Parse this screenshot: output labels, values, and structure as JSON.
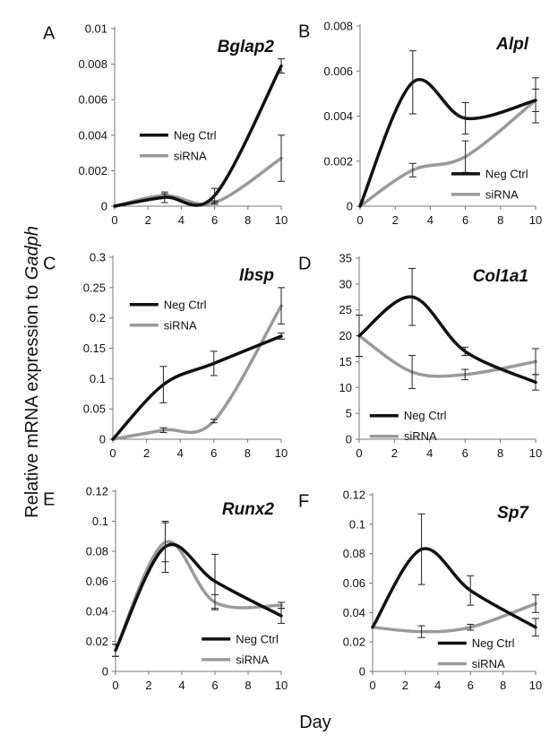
{
  "y_axis_title": {
    "main": "Relative mRNA expression to ",
    "gene": "Gadph"
  },
  "x_axis_title": "Day",
  "colors": {
    "neg_ctrl": "#111111",
    "sirna": "#9a9a9a"
  },
  "chart_data": [
    {
      "type": "line",
      "letter": "A",
      "title": "Bglap2",
      "x_ticks": [
        "0",
        "2",
        "4",
        "6",
        "8",
        "10"
      ],
      "xlim": [
        0,
        10
      ],
      "y_ticks": [
        "0",
        "0.002",
        "0.004",
        "0.006",
        "0.008",
        "0.01"
      ],
      "ylim": [
        0,
        0.01
      ],
      "x": [
        0,
        3,
        6,
        10
      ],
      "legend_position": "middle-left",
      "series": [
        {
          "name": "Neg Ctrl",
          "values": [
            0,
            0.0005,
            0.0006,
            0.0079
          ],
          "errors": [
            0,
            0.0003,
            0.0004,
            0.0004
          ]
        },
        {
          "name": "siRNA",
          "values": [
            0,
            0.0006,
            0.0002,
            0.0027
          ],
          "errors": [
            0,
            0.0001,
            0.0001,
            0.0013
          ]
        }
      ]
    },
    {
      "type": "line",
      "letter": "B",
      "title": "Alpl",
      "x_ticks": [
        "0",
        "2",
        "4",
        "6",
        "8",
        "10"
      ],
      "xlim": [
        0,
        10
      ],
      "y_ticks": [
        "0",
        "0.002",
        "0.004",
        "0.006",
        "0.008"
      ],
      "ylim": [
        0,
        0.008
      ],
      "x": [
        0,
        3,
        6,
        10
      ],
      "legend_position": "bottom-right",
      "series": [
        {
          "name": "Neg Ctrl",
          "values": [
            0,
            0.0055,
            0.0039,
            0.0047
          ],
          "errors": [
            0,
            0.0014,
            0.0007,
            0.001
          ]
        },
        {
          "name": "siRNA",
          "values": [
            0,
            0.0016,
            0.0022,
            0.0047
          ],
          "errors": [
            0,
            0.0003,
            0.0007,
            0.0005
          ]
        }
      ]
    },
    {
      "type": "line",
      "letter": "C",
      "title": "Ibsp",
      "x_ticks": [
        "0",
        "2",
        "4",
        "6",
        "8",
        "10"
      ],
      "xlim": [
        0,
        10
      ],
      "y_ticks": [
        "0",
        "0.05",
        "0.1",
        "0.15",
        "0.2",
        "0.25",
        "0.3"
      ],
      "ylim": [
        0,
        0.3
      ],
      "x": [
        0,
        3,
        6,
        10
      ],
      "legend_position": "top-left",
      "series": [
        {
          "name": "Neg Ctrl",
          "values": [
            0,
            0.09,
            0.125,
            0.17
          ],
          "errors": [
            0,
            0.03,
            0.02,
            0.005
          ]
        },
        {
          "name": "siRNA",
          "values": [
            0,
            0.015,
            0.03,
            0.22
          ],
          "errors": [
            0,
            0.004,
            0.003,
            0.03
          ]
        }
      ]
    },
    {
      "type": "line",
      "letter": "D",
      "title": "Col1a1",
      "x_ticks": [
        "0",
        "2",
        "4",
        "6",
        "8",
        "10"
      ],
      "xlim": [
        0,
        10
      ],
      "y_ticks": [
        "0",
        "5",
        "10",
        "15",
        "20",
        "25",
        "30",
        "35"
      ],
      "ylim": [
        0,
        35
      ],
      "x": [
        0,
        3,
        6,
        10
      ],
      "legend_position": "bottom-left",
      "series": [
        {
          "name": "Neg Ctrl",
          "values": [
            20,
            27.5,
            17,
            11
          ],
          "errors": [
            4,
            5.5,
            0.8,
            1.5
          ]
        },
        {
          "name": "siRNA",
          "values": [
            20,
            13,
            12.5,
            15
          ],
          "errors": [
            4,
            3.2,
            1,
            2.5
          ]
        }
      ]
    },
    {
      "type": "line",
      "letter": "E",
      "title": "Runx2",
      "x_ticks": [
        "0",
        "2",
        "4",
        "6",
        "8",
        "10"
      ],
      "xlim": [
        0,
        10
      ],
      "y_ticks": [
        "0",
        "0.02",
        "0.04",
        "0.06",
        "0.08",
        "0.1",
        "0.12"
      ],
      "ylim": [
        0,
        0.12
      ],
      "x": [
        0,
        3,
        6,
        10
      ],
      "legend_position": "bottom-right",
      "series": [
        {
          "name": "Neg Ctrl",
          "values": [
            0.014,
            0.083,
            0.06,
            0.037
          ],
          "errors": [
            0.004,
            0.017,
            0.018,
            0.005
          ]
        },
        {
          "name": "siRNA",
          "values": [
            0.014,
            0.086,
            0.046,
            0.044
          ],
          "errors": [
            0.004,
            0.013,
            0.005,
            0.002
          ]
        }
      ]
    },
    {
      "type": "line",
      "letter": "F",
      "title": "Sp7",
      "x_ticks": [
        "0",
        "2",
        "4",
        "6",
        "8",
        "10"
      ],
      "xlim": [
        0,
        10
      ],
      "y_ticks": [
        "0",
        "0.02",
        "0.04",
        "0.06",
        "0.08",
        "0.1",
        "0.12"
      ],
      "ylim": [
        0,
        0.12
      ],
      "x": [
        0,
        3,
        6,
        10
      ],
      "legend_position": "bottom-center",
      "series": [
        {
          "name": "Neg Ctrl",
          "values": [
            0.03,
            0.083,
            0.055,
            0.03
          ],
          "errors": [
            0,
            0.024,
            0.01,
            0.006
          ]
        },
        {
          "name": "siRNA",
          "values": [
            0.03,
            0.027,
            0.03,
            0.046
          ],
          "errors": [
            0,
            0.004,
            0.002,
            0.006
          ]
        }
      ]
    }
  ]
}
